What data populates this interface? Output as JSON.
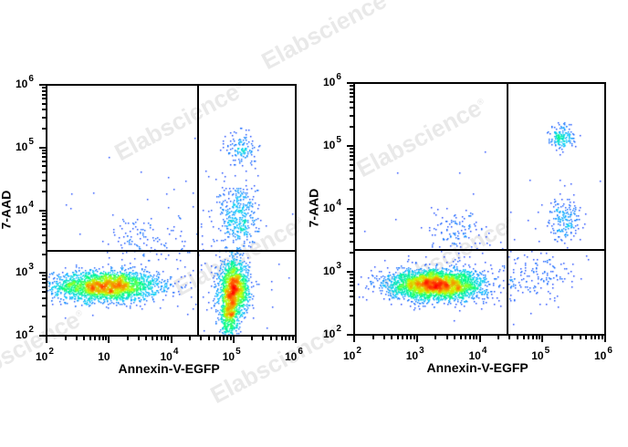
{
  "watermark": {
    "text": "Elabscience",
    "mark": "®"
  },
  "chart_data": [
    {
      "type": "scatter",
      "title": "",
      "xlabel": "Annexin-V-EGFP",
      "ylabel": "7-AAD",
      "x_scale": "log",
      "y_scale": "log",
      "xlim": [
        100,
        1000000
      ],
      "ylim": [
        100,
        1000000
      ],
      "x_tick_labels": [
        {
          "base": "10",
          "exp": "2"
        },
        {
          "base": "10",
          "exp": ""
        },
        {
          "base": "10",
          "exp": "4"
        },
        {
          "base": "10",
          "exp": "5"
        },
        {
          "base": "10",
          "exp": "6"
        }
      ],
      "y_tick_labels": [
        {
          "base": "10",
          "exp": "6"
        },
        {
          "base": "10",
          "exp": "5"
        },
        {
          "base": "10",
          "exp": "4"
        },
        {
          "base": "10",
          "exp": "3"
        },
        {
          "base": "10",
          "exp": "2"
        }
      ],
      "gates": {
        "x_threshold": 26000,
        "y_threshold": 2200
      },
      "color_scale": [
        "#0000ff",
        "#00c8ff",
        "#00ff80",
        "#c8ff00",
        "#ff8000",
        "#ff0000"
      ],
      "populations": [
        {
          "name": "live (Annexin-/7-AAD-)",
          "cx": 2.95,
          "cy": 2.8,
          "sx": 0.42,
          "sy": 0.12,
          "n": 2600
        },
        {
          "name": "early apoptotic (Annexin+/7-AAD-)",
          "cx": 5.0,
          "cy": 2.75,
          "sx": 0.12,
          "sy": 0.22,
          "n": 1500
        },
        {
          "name": "early apoptotic tail",
          "cx": 4.92,
          "cy": 2.35,
          "sx": 0.07,
          "sy": 0.2,
          "n": 500
        },
        {
          "name": "late apoptotic (Annexin+/7-AAD+)",
          "cx": 5.08,
          "cy": 3.9,
          "sx": 0.15,
          "sy": 0.3,
          "n": 400
        },
        {
          "name": "necrotic high 7-AAD",
          "cx": 5.12,
          "cy": 5.0,
          "sx": 0.12,
          "sy": 0.14,
          "n": 130
        },
        {
          "name": "upper-left scatter",
          "cx": 3.45,
          "cy": 3.55,
          "sx": 0.25,
          "sy": 0.18,
          "n": 90
        },
        {
          "name": "background",
          "cx": 4.2,
          "cy": 3.4,
          "sx": 0.9,
          "sy": 0.6,
          "n": 150
        }
      ],
      "quadrant_percentages": []
    },
    {
      "type": "scatter",
      "title": "",
      "xlabel": "Annexin-V-EGFP",
      "ylabel": "7-AAD",
      "x_scale": "log",
      "y_scale": "log",
      "xlim": [
        100,
        1000000
      ],
      "ylim": [
        100,
        1000000
      ],
      "x_tick_labels": [
        {
          "base": "10",
          "exp": "2"
        },
        {
          "base": "10",
          "exp": "3"
        },
        {
          "base": "10",
          "exp": "4"
        },
        {
          "base": "10",
          "exp": "5"
        },
        {
          "base": "10",
          "exp": "6"
        }
      ],
      "y_tick_labels": [
        {
          "base": "10",
          "exp": "6"
        },
        {
          "base": "10",
          "exp": "5"
        },
        {
          "base": "10",
          "exp": "4"
        },
        {
          "base": "10",
          "exp": "3"
        },
        {
          "base": "10",
          "exp": "2"
        }
      ],
      "gates": {
        "x_threshold": 25000,
        "y_threshold": 2200
      },
      "color_scale": [
        "#0000ff",
        "#00c8ff",
        "#00ff80",
        "#c8ff00",
        "#ff8000",
        "#ff0000"
      ],
      "populations": [
        {
          "name": "live (Annexin-/7-AAD-)",
          "cx": 3.3,
          "cy": 2.8,
          "sx": 0.38,
          "sy": 0.12,
          "n": 3200
        },
        {
          "name": "early apoptotic (Annexin+/7-AAD-)",
          "cx": 4.9,
          "cy": 2.95,
          "sx": 0.3,
          "sy": 0.2,
          "n": 130
        },
        {
          "name": "late apoptotic (Annexin+/7-AAD+)",
          "cx": 5.35,
          "cy": 3.85,
          "sx": 0.12,
          "sy": 0.17,
          "n": 180
        },
        {
          "name": "necrotic high 7-AAD",
          "cx": 5.3,
          "cy": 5.15,
          "sx": 0.1,
          "sy": 0.1,
          "n": 170
        },
        {
          "name": "upper-left scatter",
          "cx": 3.6,
          "cy": 3.6,
          "sx": 0.22,
          "sy": 0.18,
          "n": 110
        },
        {
          "name": "background",
          "cx": 4.4,
          "cy": 3.6,
          "sx": 0.8,
          "sy": 0.6,
          "n": 60
        }
      ],
      "quadrant_percentages": []
    }
  ]
}
